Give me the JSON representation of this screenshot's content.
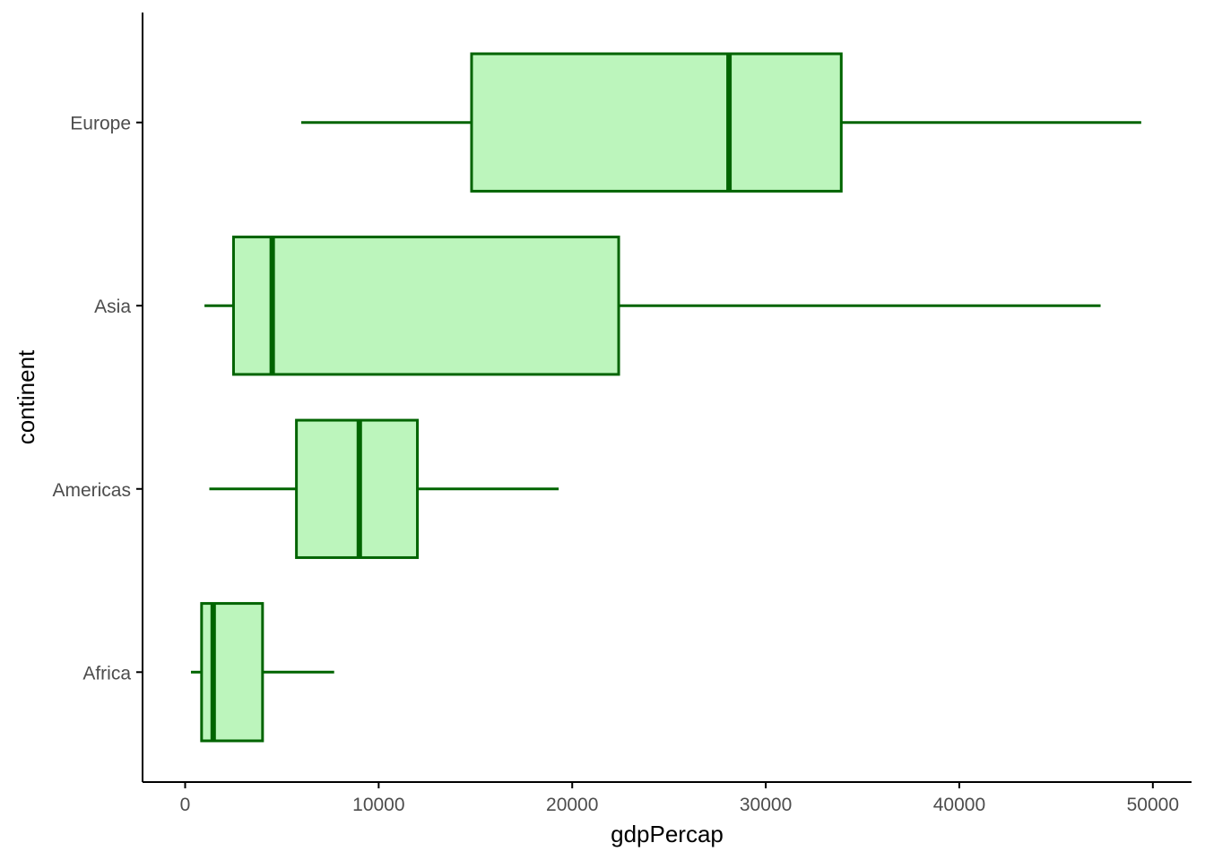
{
  "chart_data": {
    "type": "boxplot",
    "orientation": "horizontal",
    "xlabel": "gdpPercap",
    "ylabel": "continent",
    "xlim": [
      -2200,
      52000
    ],
    "xticks": [
      0,
      10000,
      20000,
      30000,
      40000,
      50000
    ],
    "xtick_labels": [
      "0",
      "10000",
      "20000",
      "30000",
      "40000",
      "50000"
    ],
    "grid": false,
    "legend": "none",
    "colors": {
      "fill": "#bcf5bc",
      "stroke": "#006400",
      "axis": "#000000",
      "tick_text": "#4d4d4d"
    },
    "categories": [
      "Africa",
      "Americas",
      "Asia",
      "Europe"
    ],
    "boxes": [
      {
        "category": "Africa",
        "whisker_low": 300,
        "q1": 850,
        "median": 1450,
        "q3": 4000,
        "whisker_high": 7700
      },
      {
        "category": "Americas",
        "whisker_low": 1250,
        "q1": 5750,
        "median": 9000,
        "q3": 12000,
        "whisker_high": 19300
      },
      {
        "category": "Asia",
        "whisker_low": 1000,
        "q1": 2500,
        "median": 4500,
        "q3": 22400,
        "whisker_high": 47300
      },
      {
        "category": "Europe",
        "whisker_low": 6000,
        "q1": 14800,
        "median": 28100,
        "q3": 33900,
        "whisker_high": 49400
      }
    ]
  }
}
